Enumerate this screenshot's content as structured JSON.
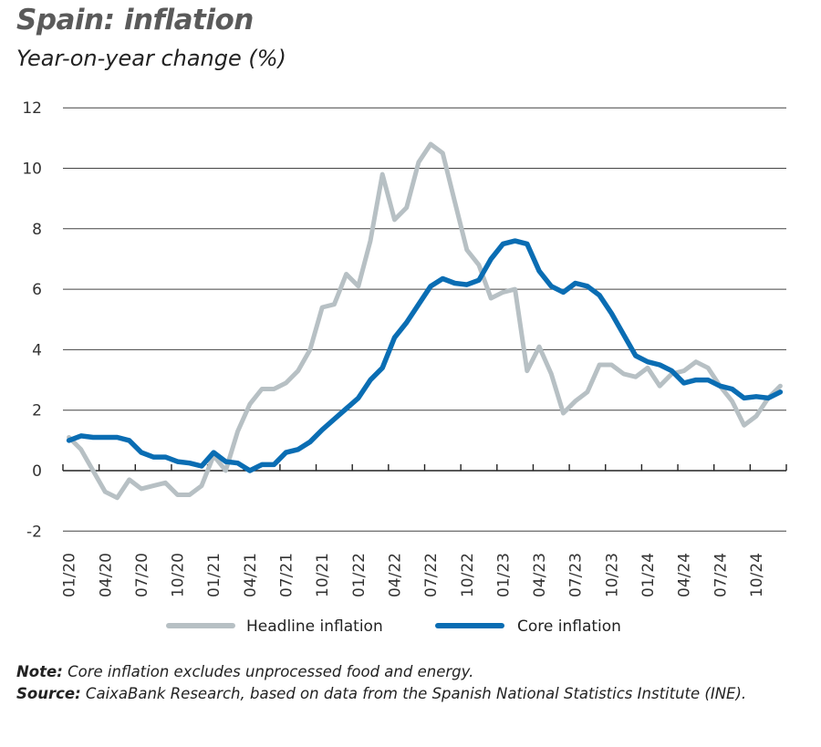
{
  "title": "Spain: inflation",
  "subtitle": "Year-on-year change (%)",
  "notes": {
    "note_label": "Note:",
    "note_text": " Core inflation excludes unprocessed food and energy.",
    "source_label": "Source:",
    "source_text": " CaixaBank Research, based on data from the Spanish National Statistics Institute (INE)."
  },
  "chart_data": {
    "type": "line",
    "title": "Spain: inflation",
    "ylabel": "Year-on-year change (%)",
    "ylim": [
      -2,
      12
    ],
    "yticks": [
      -2,
      0,
      2,
      4,
      6,
      8,
      10,
      12
    ],
    "xtick_labels": [
      "01/20",
      "04/20",
      "07/20",
      "10/20",
      "01/21",
      "04/21",
      "07/21",
      "10/21",
      "01/22",
      "04/22",
      "07/22",
      "10/22",
      "01/23",
      "04/23",
      "07/23",
      "10/23",
      "01/24",
      "04/24",
      "07/24",
      "10/24"
    ],
    "x_start": "01/2020",
    "x_end": "12/2024",
    "frequency": "monthly",
    "grid": true,
    "legend_position": "bottom",
    "series": [
      {
        "name": "Headline inflation",
        "color": "#b7c0c4",
        "values": [
          1.1,
          0.7,
          0.0,
          -0.7,
          -0.9,
          -0.3,
          -0.6,
          -0.5,
          -0.4,
          -0.8,
          -0.8,
          -0.5,
          0.5,
          0.0,
          1.3,
          2.2,
          2.7,
          2.7,
          2.9,
          3.3,
          4.0,
          5.4,
          5.5,
          6.5,
          6.1,
          7.6,
          9.8,
          8.3,
          8.7,
          10.2,
          10.8,
          10.5,
          8.9,
          7.3,
          6.8,
          5.7,
          5.9,
          6.0,
          3.3,
          4.1,
          3.2,
          1.9,
          2.3,
          2.6,
          3.5,
          3.5,
          3.2,
          3.1,
          3.4,
          2.8,
          3.2,
          3.3,
          3.6,
          3.4,
          2.8,
          2.3,
          1.5,
          1.8,
          2.4,
          2.8
        ]
      },
      {
        "name": "Core inflation",
        "color": "#0a6db3",
        "values": [
          1.0,
          1.15,
          1.1,
          1.1,
          1.1,
          1.0,
          0.6,
          0.45,
          0.45,
          0.3,
          0.25,
          0.15,
          0.6,
          0.3,
          0.25,
          0.0,
          0.2,
          0.2,
          0.6,
          0.7,
          0.95,
          1.35,
          1.7,
          2.05,
          2.4,
          3.0,
          3.4,
          4.4,
          4.9,
          5.5,
          6.1,
          6.35,
          6.2,
          6.15,
          6.3,
          7.0,
          7.5,
          7.6,
          7.5,
          6.6,
          6.1,
          5.9,
          6.2,
          6.1,
          5.8,
          5.2,
          4.5,
          3.8,
          3.6,
          3.5,
          3.3,
          2.9,
          3.0,
          3.0,
          2.8,
          2.7,
          2.4,
          2.45,
          2.4,
          2.6
        ]
      }
    ]
  }
}
